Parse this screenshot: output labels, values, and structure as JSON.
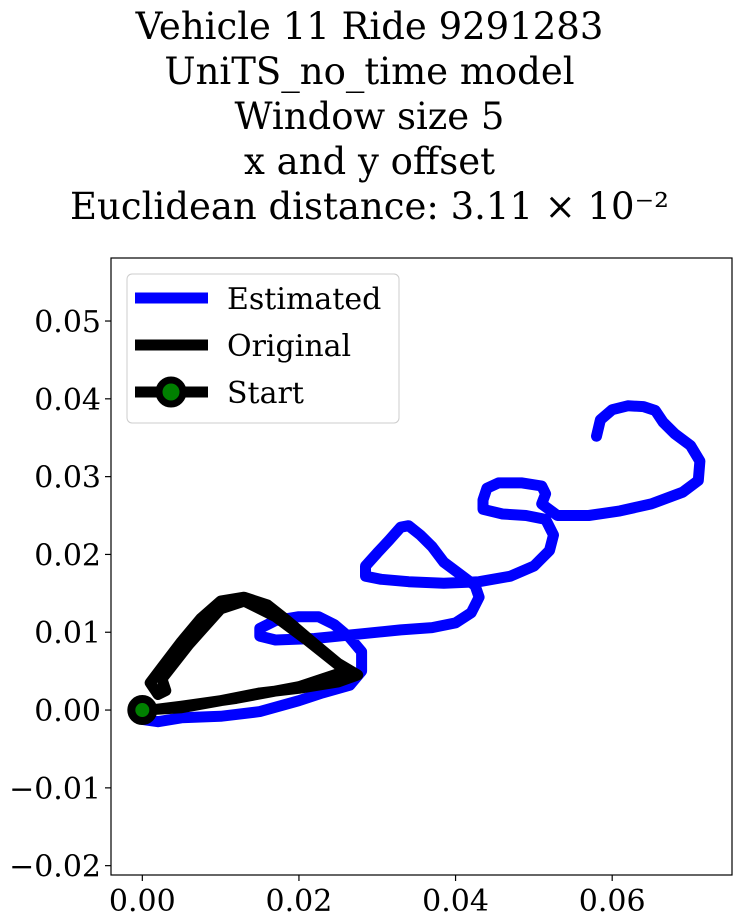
{
  "chart_data": {
    "type": "line",
    "title_lines": [
      "Vehicle 11 Ride 9291283",
      "UniTS_no_time model",
      "Window size 5",
      "x and y offset",
      "Euclidean distance: 3.11 × 10⁻²"
    ],
    "xlabel": "",
    "ylabel": "",
    "xlim": [
      -0.004,
      0.0753
    ],
    "ylim": [
      -0.0212,
      0.0581
    ],
    "x_ticks": [
      0.0,
      0.02,
      0.04,
      0.06
    ],
    "x_tick_labels": [
      "0.00",
      "0.02",
      "0.04",
      "0.06"
    ],
    "y_ticks": [
      -0.02,
      -0.01,
      0.0,
      0.01,
      0.02,
      0.03,
      0.04,
      0.05
    ],
    "y_tick_labels": [
      "−0.02",
      "−0.01",
      "0.00",
      "0.01",
      "0.02",
      "0.03",
      "0.04",
      "0.05"
    ],
    "grid": false,
    "legend_position": "upper-left",
    "series": [
      {
        "name": "Estimated",
        "color": "#0000ff",
        "points": [
          [
            0.0,
            -0.0012
          ],
          [
            0.002,
            -0.0015
          ],
          [
            0.005,
            -0.001
          ],
          [
            0.01,
            -0.0008
          ],
          [
            0.015,
            -0.0002
          ],
          [
            0.02,
            0.0012
          ],
          [
            0.023,
            0.0022
          ],
          [
            0.0265,
            0.0032
          ],
          [
            0.028,
            0.005
          ],
          [
            0.028,
            0.0075
          ],
          [
            0.0265,
            0.0093
          ],
          [
            0.0245,
            0.011
          ],
          [
            0.0225,
            0.012
          ],
          [
            0.02,
            0.012
          ],
          [
            0.017,
            0.0115
          ],
          [
            0.015,
            0.0105
          ],
          [
            0.015,
            0.0095
          ],
          [
            0.017,
            0.009
          ],
          [
            0.022,
            0.0092
          ],
          [
            0.028,
            0.0098
          ],
          [
            0.033,
            0.0103
          ],
          [
            0.037,
            0.0106
          ],
          [
            0.04,
            0.0112
          ],
          [
            0.042,
            0.0125
          ],
          [
            0.043,
            0.0145
          ],
          [
            0.0425,
            0.016
          ],
          [
            0.0405,
            0.0175
          ],
          [
            0.0385,
            0.019
          ],
          [
            0.037,
            0.021
          ],
          [
            0.0355,
            0.0225
          ],
          [
            0.034,
            0.0237
          ],
          [
            0.033,
            0.0235
          ],
          [
            0.0315,
            0.0218
          ],
          [
            0.03,
            0.0202
          ],
          [
            0.0285,
            0.0185
          ],
          [
            0.0285,
            0.0172
          ],
          [
            0.0305,
            0.0168
          ],
          [
            0.034,
            0.0165
          ],
          [
            0.0385,
            0.0163
          ],
          [
            0.043,
            0.0165
          ],
          [
            0.047,
            0.0172
          ],
          [
            0.05,
            0.0185
          ],
          [
            0.052,
            0.0205
          ],
          [
            0.0525,
            0.0225
          ],
          [
            0.0515,
            0.0245
          ],
          [
            0.049,
            0.025
          ],
          [
            0.046,
            0.0252
          ],
          [
            0.0435,
            0.0258
          ],
          [
            0.0435,
            0.027
          ],
          [
            0.044,
            0.0285
          ],
          [
            0.0455,
            0.0292
          ],
          [
            0.0485,
            0.0292
          ],
          [
            0.051,
            0.0288
          ],
          [
            0.0515,
            0.0278
          ],
          [
            0.051,
            0.0265
          ],
          [
            0.053,
            0.025
          ],
          [
            0.057,
            0.025
          ],
          [
            0.061,
            0.0256
          ],
          [
            0.065,
            0.0265
          ],
          [
            0.069,
            0.028
          ],
          [
            0.071,
            0.0295
          ],
          [
            0.0712,
            0.032
          ],
          [
            0.07,
            0.034
          ],
          [
            0.068,
            0.0355
          ],
          [
            0.0665,
            0.037
          ],
          [
            0.0655,
            0.0385
          ],
          [
            0.064,
            0.039
          ],
          [
            0.062,
            0.0391
          ],
          [
            0.06,
            0.0386
          ],
          [
            0.0585,
            0.0373
          ],
          [
            0.058,
            0.0352
          ]
        ]
      },
      {
        "name": "Original",
        "color": "#000000",
        "points": [
          [
            0.0,
            0.0
          ],
          [
            0.005,
            0.0003
          ],
          [
            0.01,
            0.0012
          ],
          [
            0.015,
            0.0022
          ],
          [
            0.02,
            0.0028
          ],
          [
            0.025,
            0.0036
          ],
          [
            0.0275,
            0.0045
          ],
          [
            0.025,
            0.006
          ],
          [
            0.022,
            0.0085
          ],
          [
            0.0185,
            0.0115
          ],
          [
            0.016,
            0.0135
          ],
          [
            0.013,
            0.0145
          ],
          [
            0.01,
            0.014
          ],
          [
            0.0075,
            0.0118
          ],
          [
            0.005,
            0.0088
          ],
          [
            0.0025,
            0.0055
          ],
          [
            0.001,
            0.0035
          ],
          [
            0.002,
            0.002
          ],
          [
            0.003,
            0.0025
          ],
          [
            0.0025,
            0.004
          ],
          [
            0.006,
            0.0085
          ],
          [
            0.01,
            0.013
          ],
          [
            0.013,
            0.014
          ],
          [
            0.017,
            0.012
          ],
          [
            0.021,
            0.009
          ],
          [
            0.026,
            0.005
          ],
          [
            0.02,
            0.003
          ],
          [
            0.012,
            0.0015
          ],
          [
            0.005,
            0.0005
          ],
          [
            0.001,
            0.0
          ]
        ]
      }
    ],
    "start_point": {
      "name": "Start",
      "x": 0.0,
      "y": 0.0,
      "fill_color": "#008000",
      "edge_color": "#000000"
    }
  }
}
